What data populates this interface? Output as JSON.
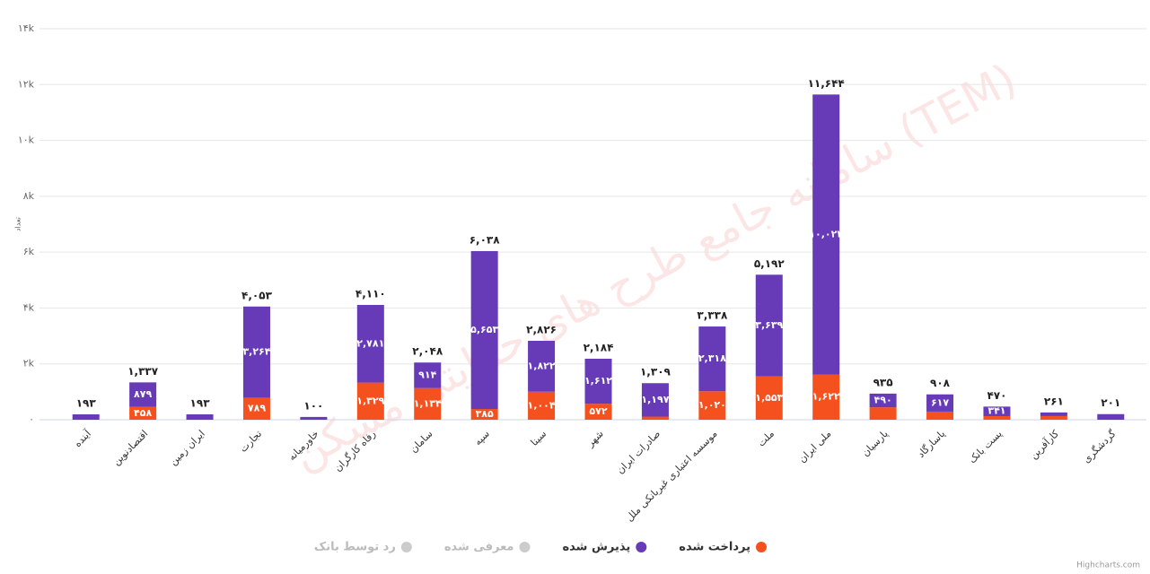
{
  "chart_data": {
    "type": "stacked_bar",
    "yaxis_label": "تعداد",
    "watermark": "سامانه جامع طرح های حمایتی مسکن (TEM)",
    "credits": "Highcharts.com",
    "categories": [
      "آینده",
      "اقتصادنوین",
      "ایران زمین",
      "تجارت",
      "خاورمیانه",
      "رفاه کارگران",
      "سامان",
      "سپه",
      "سینا",
      "شهر",
      "صادرات ایران",
      "موسسه اعتباری غیربانکی ملل",
      "ملت",
      "ملی ایران",
      "پارسیان",
      "پاسارگاد",
      "پست بانک",
      "کارآفرین",
      "گردشگری"
    ],
    "series": [
      {
        "name": "پرداخت شده",
        "color": "#f4511e",
        "visible": true,
        "values": [
          0,
          458,
          0,
          789,
          0,
          1329,
          1134,
          385,
          1004,
          572,
          112,
          1020,
          1553,
          1622,
          445,
          291,
          129,
          130,
          0
        ],
        "value_labels": [
          null,
          "۴۵۸",
          null,
          "۷۸۹",
          null,
          "۱,۳۲۹",
          "۱,۱۳۴",
          "۳۸۵",
          "۱,۰۰۴",
          "۵۷۲",
          null,
          "۱,۰۲۰",
          "۱,۵۵۳",
          "۱,۶۲۲",
          null,
          null,
          null,
          null,
          null
        ]
      },
      {
        "name": "پذیرش شده",
        "color": "#673ab7",
        "visible": true,
        "values": [
          193,
          879,
          193,
          3264,
          100,
          2781,
          914,
          5653,
          1822,
          1612,
          1197,
          2318,
          3639,
          10022,
          490,
          617,
          341,
          131,
          201
        ],
        "value_labels": [
          null,
          "۸۷۹",
          null,
          "۳,۲۶۴",
          null,
          "۲,۷۸۱",
          "۹۱۴",
          "۵,۶۵۳",
          "۱,۸۲۲",
          "۱,۶۱۲",
          "۱,۱۹۷",
          "۲,۳۱۸",
          "۳,۶۳۹",
          "۱۰,۰۲۲",
          "۴۹۰",
          "۶۱۷",
          "۳۴۱",
          null,
          null
        ]
      },
      {
        "name": "معرفی شده",
        "color": "#cccccc",
        "visible": false,
        "values": [
          null,
          null,
          null,
          null,
          null,
          null,
          null,
          null,
          null,
          null,
          null,
          null,
          null,
          null,
          null,
          null,
          null,
          null,
          null
        ]
      },
      {
        "name": "رد توسط بانک",
        "color": "#cccccc",
        "visible": false,
        "values": [
          null,
          null,
          null,
          null,
          null,
          null,
          null,
          null,
          null,
          null,
          null,
          null,
          null,
          null,
          null,
          null,
          null,
          null,
          null
        ]
      }
    ],
    "totals": [
      193,
      1337,
      193,
      4053,
      100,
      4110,
      2048,
      6038,
      2826,
      2184,
      1309,
      3338,
      5192,
      11644,
      935,
      908,
      470,
      261,
      201
    ],
    "total_labels": [
      "۱۹۳",
      "۱,۳۳۷",
      "۱۹۳",
      "۴,۰۵۳",
      "۱۰۰",
      "۴,۱۱۰",
      "۲,۰۴۸",
      "۶,۰۳۸",
      "۲,۸۲۶",
      "۲,۱۸۴",
      "۱,۳۰۹",
      "۳,۳۳۸",
      "۵,۱۹۲",
      "۱۱,۶۴۴",
      "۹۳۵",
      "۹۰۸",
      "۴۷۰",
      "۲۶۱",
      "۲۰۱"
    ],
    "ylim": [
      0,
      14000
    ],
    "yticks": [
      {
        "value": 0,
        "label": "۰"
      },
      {
        "value": 2000,
        "label": "۲k"
      },
      {
        "value": 4000,
        "label": "۴k"
      },
      {
        "value": 6000,
        "label": "۶k"
      },
      {
        "value": 8000,
        "label": "۸k"
      },
      {
        "value": 10000,
        "label": "۱۰k"
      },
      {
        "value": 12000,
        "label": "۱۲k"
      },
      {
        "value": 14000,
        "label": "۱۴k"
      }
    ],
    "grid": true
  }
}
